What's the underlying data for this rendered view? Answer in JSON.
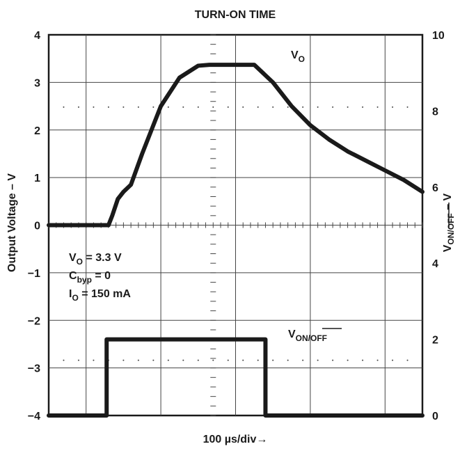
{
  "chart_data": {
    "type": "line",
    "title": "TURN-ON TIME",
    "xlabel": "100 µs/div→",
    "ylabel_left": "Output Voltage – V",
    "ylabel_right": "V_ON/OFF – V",
    "ylim_left": [
      -4,
      4
    ],
    "ylim_right": [
      0,
      10
    ],
    "xlim_divisions": [
      0,
      10
    ],
    "grid": true,
    "left_ticks": [
      "4",
      "3",
      "2",
      "1",
      "0",
      "−1",
      "−2",
      "−3",
      "−4"
    ],
    "right_ticks": [
      "10",
      "8",
      "6",
      "4",
      "2",
      "0"
    ],
    "series": [
      {
        "name": "VO",
        "axis": "left",
        "x": [
          0.0,
          1.6,
          1.7,
          1.85,
          2.0,
          2.2,
          2.5,
          3.0,
          3.5,
          4.0,
          4.3,
          4.5,
          5.0,
          5.5,
          6.0,
          6.5,
          7.0,
          7.5,
          8.0,
          8.5,
          9.0,
          9.5,
          10.0
        ],
        "y": [
          0.0,
          0.0,
          0.2,
          0.55,
          0.7,
          0.85,
          1.5,
          2.5,
          3.1,
          3.35,
          3.37,
          3.37,
          3.37,
          3.37,
          3.0,
          2.5,
          2.1,
          1.8,
          1.55,
          1.35,
          1.15,
          0.95,
          0.7
        ]
      },
      {
        "name": "VON/OFF",
        "axis": "right",
        "x": [
          0.0,
          1.55,
          1.55,
          5.8,
          5.8,
          10.0
        ],
        "y": [
          0.0,
          0.0,
          2.0,
          2.0,
          0.0,
          0.0
        ]
      }
    ],
    "annotations": {
      "vo_label": "V",
      "vo_sub": "O",
      "von_label": "V",
      "von_sub": "ON/OFF",
      "cond1_main": "V",
      "cond1_sub": "O",
      "cond1_rest": " = 3.3 V",
      "cond2_main": "C",
      "cond2_sub": "byp",
      "cond2_rest": " = 0",
      "cond3_main": "I",
      "cond3_sub": "O",
      "cond3_rest": " = 150 mA"
    }
  }
}
